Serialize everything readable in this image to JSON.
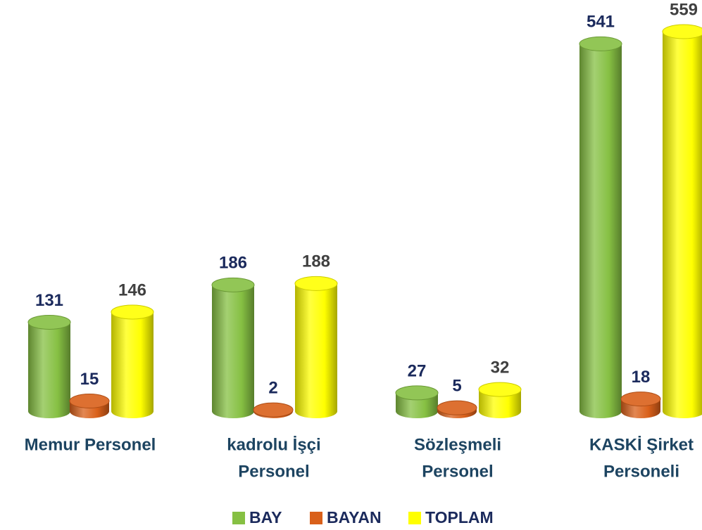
{
  "chart_data": {
    "type": "bar",
    "categories": [
      [
        "Memur Personel"
      ],
      [
        "kadrolu İşçi",
        "Personel"
      ],
      [
        "Sözleşmeli",
        "Personel"
      ],
      [
        "KASKİ Şirket",
        "Personeli"
      ]
    ],
    "series": [
      {
        "name": "BAY",
        "color": "#86c043",
        "values": [
          131,
          186,
          27,
          541
        ]
      },
      {
        "name": "BAYAN",
        "color": "#d9601a",
        "values": [
          15,
          2,
          5,
          18
        ]
      },
      {
        "name": "TOPLAM",
        "color": "#ffff00",
        "values": [
          146,
          188,
          32,
          559
        ]
      }
    ]
  }
}
